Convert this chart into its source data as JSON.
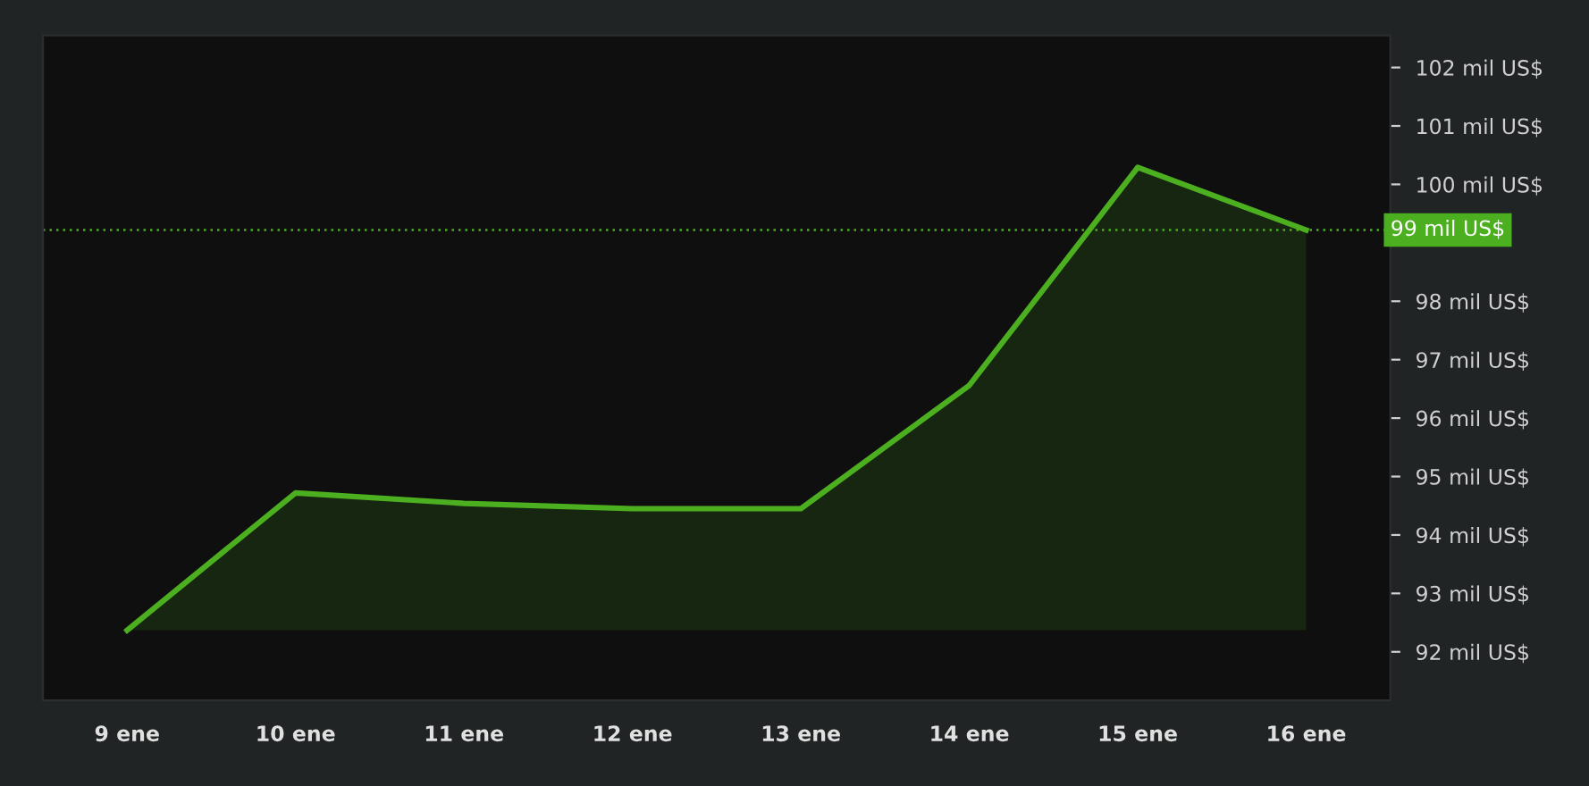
{
  "chart_data": {
    "type": "area",
    "categories": [
      "9 ene",
      "10 ene",
      "11 ene",
      "12 ene",
      "13 ene",
      "14 ene",
      "15 ene",
      "16 ene"
    ],
    "series": [
      {
        "color": "#4caf20",
        "values": [
          92.37,
          94.72,
          94.54,
          94.45,
          94.45,
          96.56,
          100.29,
          99.22
        ]
      }
    ],
    "ylim": [
      91.17,
      102.55
    ],
    "yticks": [
      {
        "value": 92,
        "label": "92 mil US$"
      },
      {
        "value": 93,
        "label": "93 mil US$"
      },
      {
        "value": 94,
        "label": "94 mil US$"
      },
      {
        "value": 95,
        "label": "95 mil US$"
      },
      {
        "value": 96,
        "label": "96 mil US$"
      },
      {
        "value": 97,
        "label": "97 mil US$"
      },
      {
        "value": 98,
        "label": "98 mil US$"
      },
      {
        "value": 99,
        "label": null
      },
      {
        "value": 100,
        "label": "100 mil US$"
      },
      {
        "value": 101,
        "label": "101 mil US$"
      },
      {
        "value": 102,
        "label": "102 mil US$"
      }
    ],
    "ref_lines": [
      {
        "axis": "y",
        "value": 99.22,
        "label": "99 mil US$",
        "color": "#4caf20",
        "line_style": "dotted"
      }
    ],
    "grid": false
  }
}
